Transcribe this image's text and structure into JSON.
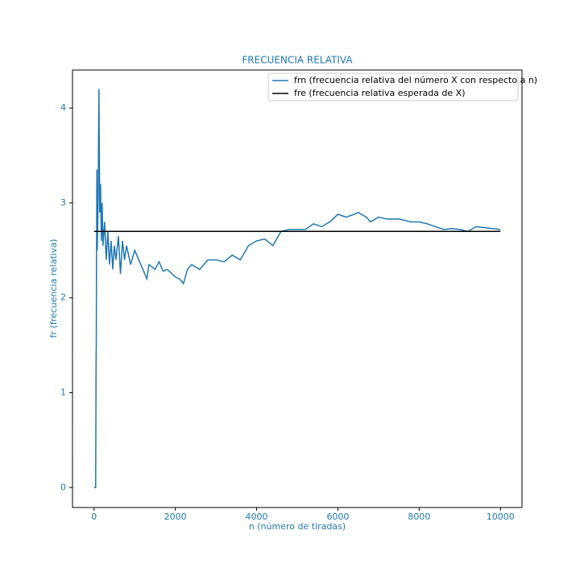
{
  "chart_data": {
    "type": "line",
    "title": "FRECUENCIA RELATIVA",
    "x_label": "n (número de tiradas)",
    "y_label": "fr (frecuencia relativa)",
    "xlim": [
      -530,
      10530
    ],
    "ylim": [
      -0.21,
      4.4
    ],
    "xticks": [
      0,
      2000,
      4000,
      6000,
      8000,
      10000
    ],
    "yticks": [
      0,
      1,
      2,
      3,
      4
    ],
    "legend": "upper right",
    "series": [
      {
        "name": "frn (frecuencia relativa del número X con respecto a n)",
        "color": "#1f77b4",
        "x": [
          0,
          40,
          50,
          55,
          60,
          70,
          80,
          100,
          120,
          140,
          160,
          180,
          200,
          220,
          260,
          300,
          340,
          380,
          420,
          460,
          500,
          540,
          600,
          650,
          700,
          750,
          800,
          900,
          1000,
          1100,
          1200,
          1300,
          1350,
          1500,
          1600,
          1700,
          1800,
          2000,
          2100,
          2200,
          2300,
          2400,
          2600,
          2800,
          3000,
          3200,
          3400,
          3600,
          3800,
          4000,
          4200,
          4400,
          4600,
          4800,
          5000,
          5200,
          5400,
          5600,
          5800,
          6000,
          6200,
          6400,
          6500,
          6700,
          6800,
          7000,
          7200,
          7500,
          7800,
          8000,
          8200,
          8400,
          8600,
          8800,
          9000,
          9200,
          9400,
          9600,
          9800,
          10000
        ],
        "values": [
          0,
          0,
          1.3,
          1.5,
          2.3,
          3.35,
          2.5,
          3.0,
          4.2,
          2.9,
          3.2,
          2.6,
          3.0,
          2.55,
          2.8,
          2.4,
          2.7,
          2.35,
          2.6,
          2.3,
          2.55,
          2.4,
          2.65,
          2.25,
          2.6,
          2.4,
          2.55,
          2.35,
          2.5,
          2.4,
          2.3,
          2.2,
          2.35,
          2.3,
          2.38,
          2.28,
          2.3,
          2.22,
          2.2,
          2.15,
          2.3,
          2.35,
          2.3,
          2.4,
          2.4,
          2.38,
          2.45,
          2.4,
          2.55,
          2.6,
          2.62,
          2.55,
          2.7,
          2.72,
          2.72,
          2.72,
          2.78,
          2.75,
          2.8,
          2.88,
          2.85,
          2.88,
          2.9,
          2.85,
          2.8,
          2.85,
          2.83,
          2.83,
          2.8,
          2.8,
          2.78,
          2.75,
          2.72,
          2.73,
          2.72,
          2.7,
          2.75,
          2.74,
          2.73,
          2.72
        ]
      },
      {
        "name": "fre (frecuencia relativa esperada de X)",
        "color": "#000000",
        "x": [
          0,
          10000
        ],
        "values": [
          2.7,
          2.7
        ]
      }
    ]
  }
}
